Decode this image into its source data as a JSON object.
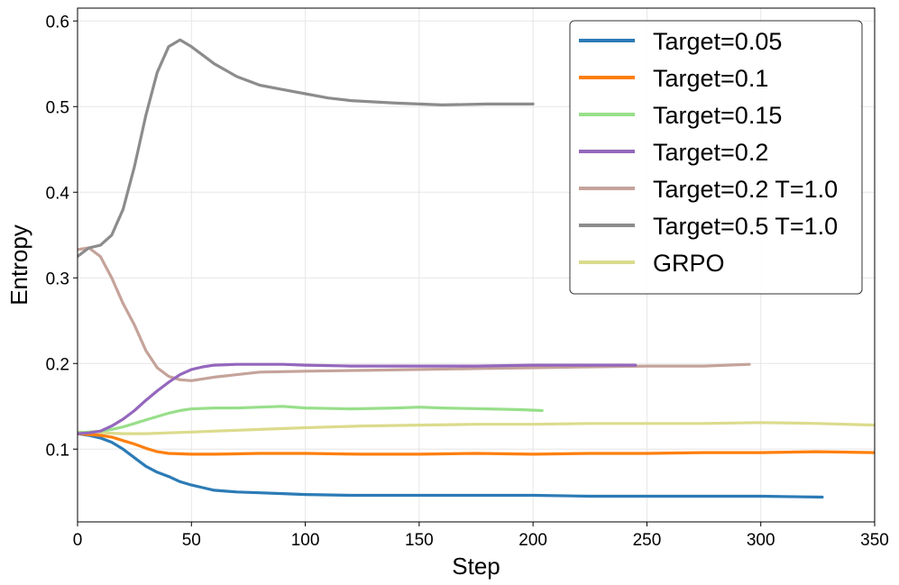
{
  "chart_data": {
    "type": "line",
    "title": "",
    "xlabel": "Step",
    "ylabel": "Entropy",
    "xlim": [
      0,
      350
    ],
    "ylim": [
      0.015,
      0.615
    ],
    "xticks": [
      0,
      50,
      100,
      150,
      200,
      250,
      300,
      350
    ],
    "xtick_labels": [
      "0",
      "50",
      "100",
      "150",
      "200",
      "250",
      "300",
      "350"
    ],
    "yticks": [
      0.1,
      0.2,
      0.3,
      0.4,
      0.5,
      0.6
    ],
    "ytick_labels": [
      "0.1",
      "0.2",
      "0.3",
      "0.4",
      "0.5",
      "0.6"
    ],
    "grid": true,
    "legend_position": "top-right",
    "series": [
      {
        "name": "Target=0.05",
        "color": "#2c7bb6",
        "x": [
          0,
          5,
          10,
          15,
          20,
          25,
          30,
          35,
          40,
          45,
          50,
          55,
          60,
          70,
          80,
          90,
          100,
          120,
          150,
          175,
          200,
          225,
          250,
          275,
          300,
          327
        ],
        "y": [
          0.118,
          0.116,
          0.113,
          0.108,
          0.1,
          0.09,
          0.08,
          0.073,
          0.068,
          0.062,
          0.058,
          0.055,
          0.052,
          0.05,
          0.049,
          0.048,
          0.047,
          0.046,
          0.046,
          0.046,
          0.046,
          0.045,
          0.045,
          0.045,
          0.045,
          0.044
        ]
      },
      {
        "name": "Target=0.1",
        "color": "#ff7f0e",
        "x": [
          0,
          5,
          10,
          15,
          20,
          25,
          30,
          35,
          40,
          50,
          60,
          80,
          100,
          125,
          150,
          175,
          200,
          225,
          250,
          275,
          300,
          325,
          350
        ],
        "y": [
          0.118,
          0.117,
          0.116,
          0.114,
          0.11,
          0.106,
          0.101,
          0.097,
          0.095,
          0.094,
          0.094,
          0.095,
          0.095,
          0.094,
          0.094,
          0.095,
          0.094,
          0.095,
          0.095,
          0.096,
          0.096,
          0.097,
          0.096
        ]
      },
      {
        "name": "Target=0.15",
        "color": "#98df8a",
        "x": [
          0,
          5,
          10,
          15,
          20,
          25,
          30,
          35,
          40,
          45,
          50,
          60,
          70,
          80,
          90,
          100,
          120,
          140,
          150,
          160,
          180,
          195,
          204
        ],
        "y": [
          0.119,
          0.12,
          0.121,
          0.123,
          0.126,
          0.13,
          0.134,
          0.138,
          0.142,
          0.145,
          0.147,
          0.148,
          0.148,
          0.149,
          0.15,
          0.148,
          0.147,
          0.148,
          0.149,
          0.148,
          0.147,
          0.146,
          0.145
        ]
      },
      {
        "name": "Target=0.2",
        "color": "#9467bd",
        "x": [
          0,
          5,
          10,
          15,
          20,
          25,
          30,
          35,
          40,
          45,
          50,
          55,
          60,
          70,
          80,
          90,
          100,
          120,
          150,
          175,
          200,
          225,
          245
        ],
        "y": [
          0.118,
          0.119,
          0.121,
          0.127,
          0.135,
          0.145,
          0.157,
          0.168,
          0.178,
          0.187,
          0.193,
          0.196,
          0.198,
          0.199,
          0.199,
          0.199,
          0.198,
          0.197,
          0.197,
          0.197,
          0.198,
          0.198,
          0.198
        ]
      },
      {
        "name": "Target=0.2 T=1.0",
        "color": "#c5a39a",
        "x": [
          0,
          5,
          10,
          15,
          20,
          25,
          30,
          35,
          40,
          45,
          50,
          60,
          80,
          100,
          125,
          150,
          175,
          200,
          225,
          250,
          275,
          295
        ],
        "y": [
          0.333,
          0.335,
          0.325,
          0.3,
          0.27,
          0.245,
          0.215,
          0.195,
          0.185,
          0.181,
          0.18,
          0.184,
          0.19,
          0.191,
          0.192,
          0.193,
          0.194,
          0.195,
          0.196,
          0.197,
          0.197,
          0.199
        ]
      },
      {
        "name": "Target=0.5 T=1.0",
        "color": "#8c8c8c",
        "x": [
          0,
          5,
          10,
          15,
          20,
          25,
          30,
          35,
          40,
          45,
          50,
          55,
          60,
          70,
          80,
          90,
          100,
          110,
          120,
          140,
          160,
          180,
          200
        ],
        "y": [
          0.325,
          0.335,
          0.338,
          0.35,
          0.38,
          0.43,
          0.49,
          0.54,
          0.57,
          0.578,
          0.57,
          0.56,
          0.55,
          0.535,
          0.525,
          0.52,
          0.515,
          0.51,
          0.507,
          0.504,
          0.502,
          0.503,
          0.503
        ]
      },
      {
        "name": "GRPO",
        "color": "#dbdb8d",
        "x": [
          0,
          10,
          20,
          30,
          40,
          50,
          60,
          80,
          100,
          125,
          150,
          175,
          200,
          225,
          250,
          275,
          300,
          325,
          350
        ],
        "y": [
          0.12,
          0.119,
          0.118,
          0.118,
          0.119,
          0.12,
          0.121,
          0.123,
          0.125,
          0.127,
          0.128,
          0.129,
          0.129,
          0.13,
          0.13,
          0.13,
          0.131,
          0.13,
          0.128
        ]
      }
    ]
  }
}
